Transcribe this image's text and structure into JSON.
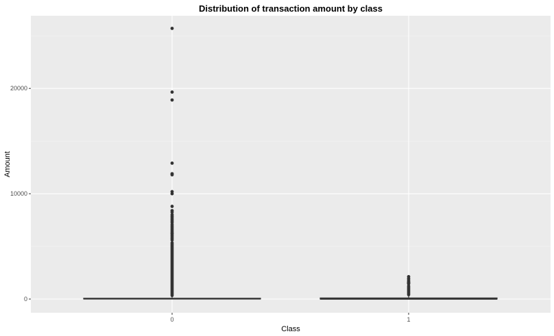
{
  "chart_data": {
    "type": "boxplot",
    "title": "Distribution of transaction amount by class",
    "xlabel": "Class",
    "ylabel": "Amount",
    "categories": [
      "0",
      "1"
    ],
    "ylim": [
      -1300,
      26900
    ],
    "yticks": [
      0,
      10000,
      20000
    ],
    "ytick_labels": [
      "0",
      "10000",
      "20000"
    ],
    "grid": true,
    "background_color": "#EBEBEB",
    "grid_color": "#FFFFFF",
    "box_color": "#333333",
    "outlier_color": "#333333",
    "series": [
      {
        "name": "0",
        "box": {
          "min": 0,
          "q1": 5.6,
          "median": 22,
          "q3": 77,
          "max": 185
        },
        "outlier_streak": [
          185,
          5500
        ],
        "outliers": [
          5600,
          5750,
          5900,
          6050,
          6200,
          6300,
          6450,
          6600,
          6750,
          6900,
          7050,
          7250,
          7400,
          7550,
          7700,
          7850,
          8000,
          8250,
          8400,
          8800,
          10000,
          10200,
          11800,
          11900,
          12900,
          18900,
          19650,
          25700
        ]
      },
      {
        "name": "1",
        "box": {
          "min": 0,
          "q1": 1,
          "median": 9,
          "q3": 105,
          "max": 259
        },
        "outlier_streak": [
          260,
          1400
        ],
        "outliers": [
          1450,
          1500,
          1580,
          1650,
          1800,
          1950,
          2125
        ]
      }
    ]
  }
}
